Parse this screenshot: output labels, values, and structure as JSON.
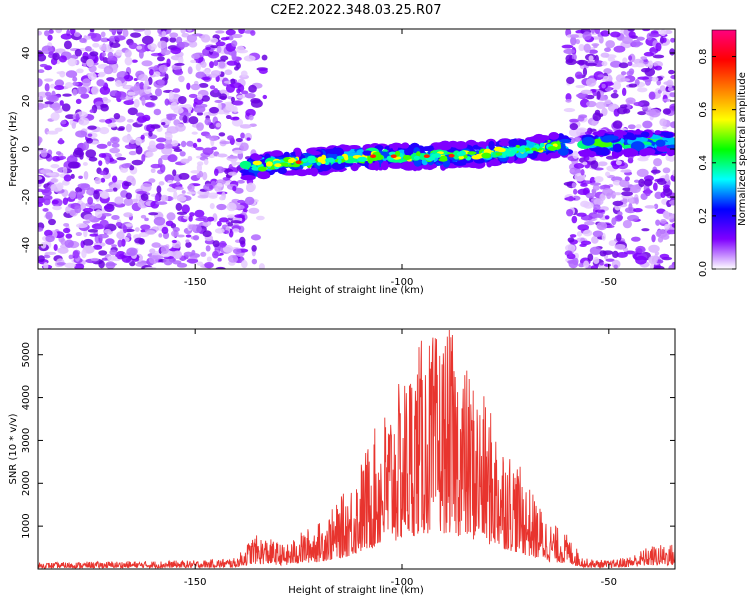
{
  "title": "C2E2.2022.348.03.25.R07",
  "chart_data": [
    {
      "type": "heatmap",
      "xlabel": "Height of straight line (km)",
      "ylabel": "Frequency (Hz)",
      "xlim": [
        -188,
        -34
      ],
      "ylim": [
        -50,
        50
      ],
      "x_ticks": [
        -150,
        -100,
        -50
      ],
      "y_ticks": [
        -40,
        -20,
        0,
        20,
        40
      ],
      "colorbar": {
        "label": "Normalized spectral amplitude",
        "range": [
          0.0,
          0.9
        ],
        "ticks": [
          0.0,
          0.2,
          0.4,
          0.6,
          0.8
        ],
        "colormap": "hsv_rainbow",
        "colors": [
          "#ffffff",
          "#7f00ff",
          "#0000ff",
          "#00ffff",
          "#00ff00",
          "#ffff00",
          "#ff8000",
          "#ff0000",
          "#ff007f"
        ]
      },
      "regions": [
        {
          "x_from": -188,
          "x_to": -138,
          "kind": "noise"
        },
        {
          "x_from": -138,
          "x_to": -60,
          "kind": "signal_band"
        },
        {
          "x_from": -60,
          "x_to": -34,
          "kind": "noise_with_band"
        }
      ],
      "signal_band_center": {
        "x": [
          -138,
          -130,
          -120,
          -110,
          -100,
          -90,
          -80,
          -70,
          -60,
          -50,
          -40,
          -34
        ],
        "freq": [
          -8,
          -6,
          -5,
          -3,
          -3,
          -3,
          -2,
          0,
          2,
          2,
          3,
          3
        ]
      },
      "grid": false
    },
    {
      "type": "line",
      "xlabel": "Height of straight line (km)",
      "ylabel": "SNR (10 * v/v)",
      "xlim": [
        -188,
        -34
      ],
      "ylim": [
        0,
        5600
      ],
      "x_ticks": [
        -150,
        -100,
        -50
      ],
      "y_ticks": [
        1000,
        2000,
        3000,
        4000,
        5000
      ],
      "color": "#e8342e",
      "envelope": {
        "x": [
          -188,
          -170,
          -150,
          -140,
          -136,
          -133,
          -128,
          -124,
          -120,
          -116,
          -112,
          -108,
          -104,
          -100,
          -96,
          -92,
          -88,
          -86,
          -84,
          -80,
          -76,
          -72,
          -68,
          -64,
          -60,
          -56,
          -50,
          -45,
          -40,
          -34
        ],
        "peak": [
          150,
          180,
          200,
          260,
          800,
          750,
          550,
          900,
          1100,
          1500,
          2100,
          3000,
          3800,
          4450,
          5350,
          5500,
          5600,
          5000,
          4700,
          4000,
          3200,
          2500,
          1700,
          1100,
          800,
          250,
          200,
          300,
          550,
          600
        ]
      },
      "grid": false
    }
  ]
}
